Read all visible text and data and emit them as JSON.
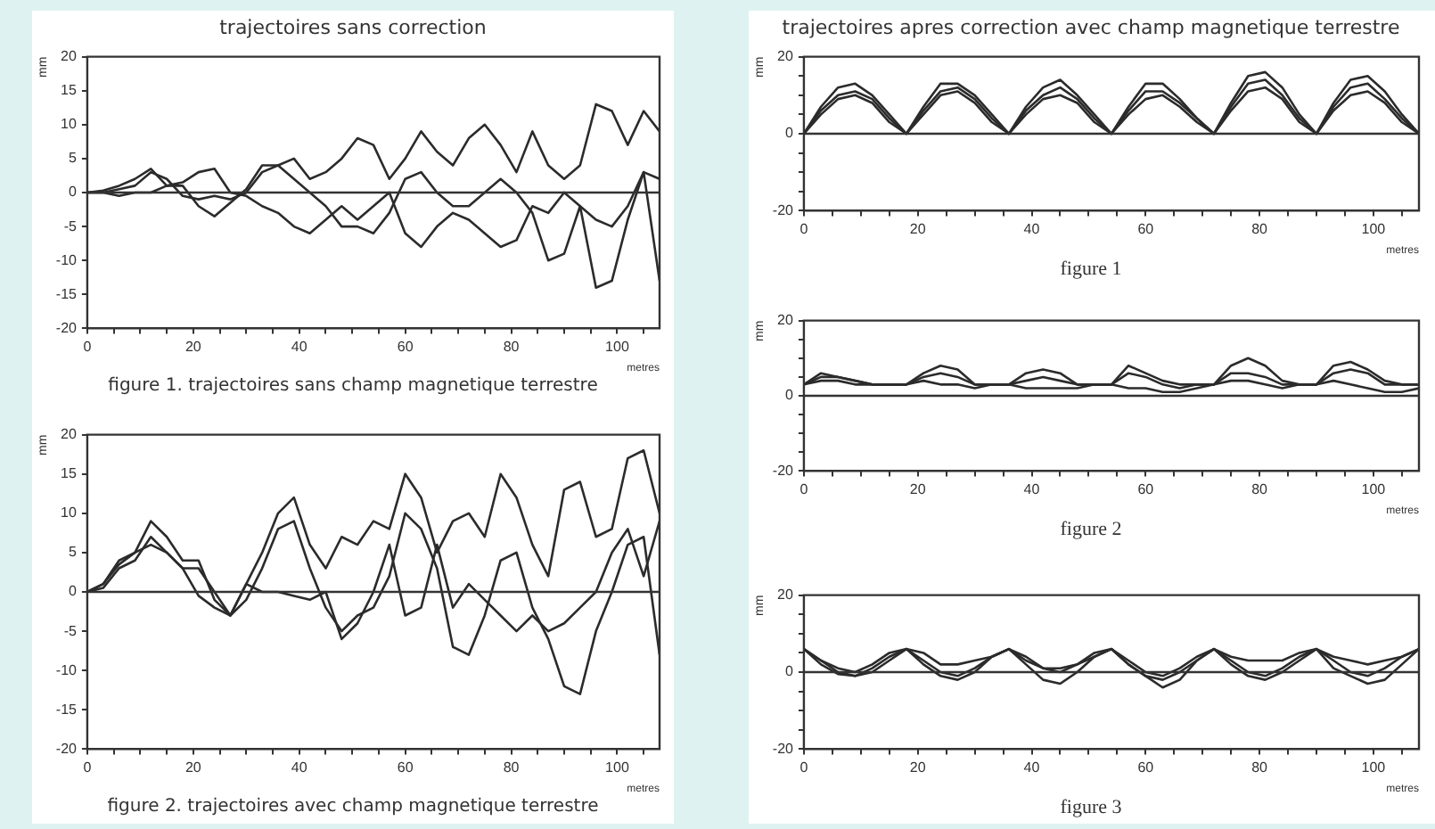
{
  "chart_data": [
    {
      "type": "line",
      "title": "trajectoires sans correction",
      "xlabel": "metres",
      "ylabel": "mm",
      "annotations": [
        "figure 1. trajectoires sans champ magnetique terrestre"
      ],
      "x": [
        0,
        3,
        6,
        9,
        12,
        15,
        18,
        21,
        24,
        27,
        30,
        33,
        36,
        39,
        42,
        45,
        48,
        51,
        54,
        57,
        60,
        63,
        66,
        69,
        72,
        75,
        78,
        81,
        84,
        87,
        90,
        93,
        96,
        99,
        102,
        105,
        108
      ],
      "series": [
        {
          "color": "#2b2b2b",
          "values": [
            0,
            0,
            0.5,
            1,
            3,
            2,
            -0.5,
            -1,
            -0.5,
            -1,
            0,
            3,
            4,
            5,
            2,
            3,
            5,
            8,
            7,
            2,
            5,
            9,
            6,
            4,
            8,
            10,
            7,
            3,
            9,
            4,
            2,
            4,
            13,
            12,
            7,
            12,
            9
          ]
        },
        {
          "color": "#2b2b2b",
          "values": [
            0,
            0.3,
            1,
            2,
            3.5,
            1,
            1.5,
            3,
            3.5,
            0,
            -0.5,
            -2,
            -3,
            -5,
            -6,
            -4,
            -2,
            -4,
            -2,
            0,
            -6,
            -8,
            -5,
            -3,
            -4,
            -6,
            -8,
            -7,
            -2,
            -3,
            0,
            -2,
            -4,
            -5,
            -2,
            3,
            2
          ]
        },
        {
          "color": "#2b2b2b",
          "values": [
            0,
            0,
            -0.5,
            0,
            0,
            1,
            1,
            -2,
            -3.5,
            -1.5,
            0.5,
            4,
            4,
            2,
            0,
            -2,
            -5,
            -5,
            -6,
            -3,
            2,
            3,
            0,
            -2,
            -2,
            0,
            2,
            0,
            -3,
            -10,
            -9,
            -2,
            -14,
            -13,
            -4,
            3,
            -13
          ]
        }
      ],
      "xlim": [
        0,
        108
      ],
      "ylim": [
        -20,
        20
      ],
      "xticks": [
        0,
        {
          "value": 5,
          "label": null
        },
        {
          "value": 10,
          "label": null
        },
        {
          "value": 15,
          "label": null
        },
        20,
        {
          "value": 25,
          "label": null
        },
        {
          "value": 30,
          "label": null
        },
        {
          "value": 35,
          "label": null
        },
        40,
        {
          "value": 45,
          "label": null
        },
        {
          "value": 50,
          "label": null
        },
        {
          "value": 55,
          "label": null
        },
        60,
        {
          "value": 65,
          "label": null
        },
        {
          "value": 70,
          "label": null
        },
        {
          "value": 75,
          "label": null
        },
        80,
        {
          "value": 85,
          "label": null
        },
        {
          "value": 90,
          "label": null
        },
        {
          "value": 95,
          "label": null
        },
        100,
        {
          "value": 105,
          "label": null
        }
      ],
      "yticks": [
        -20,
        -15,
        -10,
        -5,
        0,
        5,
        10,
        15,
        20
      ],
      "ref_lines": [
        {
          "axis": "y",
          "value": 0
        }
      ],
      "grid": false,
      "legend": false,
      "marker": "none",
      "line_style": "solid"
    },
    {
      "type": "line",
      "xlabel": "metres",
      "ylabel": "mm",
      "annotations": [
        "figure 2. trajectoires avec champ magnetique terrestre"
      ],
      "x": [
        0,
        3,
        6,
        9,
        12,
        15,
        18,
        21,
        24,
        27,
        30,
        33,
        36,
        39,
        42,
        45,
        48,
        51,
        54,
        57,
        60,
        63,
        66,
        69,
        72,
        75,
        78,
        81,
        84,
        87,
        90,
        93,
        96,
        99,
        102,
        105,
        108
      ],
      "series": [
        {
          "color": "#2b2b2b",
          "values": [
            0,
            1,
            4,
            5,
            9,
            7,
            4,
            4,
            -1,
            -3,
            1,
            5,
            10,
            12,
            6,
            3,
            7,
            6,
            9,
            8,
            15,
            12,
            5,
            9,
            10,
            7,
            15,
            12,
            6,
            2,
            13,
            14,
            7,
            8,
            17,
            18,
            10
          ]
        },
        {
          "color": "#2b2b2b",
          "values": [
            0,
            1,
            3.5,
            5,
            6,
            5,
            3,
            3,
            0,
            -3,
            -1,
            3,
            8,
            9,
            3,
            -2,
            -5,
            -3,
            -2,
            2,
            10,
            8,
            3,
            -7,
            -8,
            -3,
            4,
            5,
            -2,
            -6,
            -12,
            -13,
            -5,
            0,
            6,
            7,
            -8
          ]
        },
        {
          "color": "#2b2b2b",
          "values": [
            0,
            0.5,
            3,
            4,
            7,
            5,
            3,
            -0.5,
            -2,
            -3,
            1,
            0,
            0,
            -0.5,
            -1,
            0,
            -6,
            -4,
            0,
            6,
            -3,
            -2,
            6,
            -2,
            1,
            -1,
            -3,
            -5,
            -3,
            -5,
            -4,
            -2,
            0,
            5,
            8,
            2,
            9
          ]
        }
      ],
      "xlim": [
        0,
        108
      ],
      "ylim": [
        -20,
        20
      ],
      "xticks": [
        0,
        {
          "value": 5,
          "label": null
        },
        {
          "value": 10,
          "label": null
        },
        {
          "value": 15,
          "label": null
        },
        20,
        {
          "value": 25,
          "label": null
        },
        {
          "value": 30,
          "label": null
        },
        {
          "value": 35,
          "label": null
        },
        40,
        {
          "value": 45,
          "label": null
        },
        {
          "value": 50,
          "label": null
        },
        {
          "value": 55,
          "label": null
        },
        60,
        {
          "value": 65,
          "label": null
        },
        {
          "value": 70,
          "label": null
        },
        {
          "value": 75,
          "label": null
        },
        80,
        {
          "value": 85,
          "label": null
        },
        {
          "value": 90,
          "label": null
        },
        {
          "value": 95,
          "label": null
        },
        100,
        {
          "value": 105,
          "label": null
        }
      ],
      "yticks": [
        -20,
        -15,
        -10,
        -5,
        0,
        5,
        10,
        15,
        20
      ],
      "ref_lines": [
        {
          "axis": "y",
          "value": 0
        }
      ],
      "grid": false,
      "legend": false,
      "marker": "none",
      "line_style": "solid"
    },
    {
      "type": "line",
      "title": "trajectoires apres correction avec champ magnetique terrestre",
      "xlabel": "metres",
      "ylabel": "mm",
      "annotations": [
        "figure 1"
      ],
      "x": [
        0,
        3,
        6,
        9,
        12,
        15,
        18,
        21,
        24,
        27,
        30,
        33,
        36,
        39,
        42,
        45,
        48,
        51,
        54,
        57,
        60,
        63,
        66,
        69,
        72,
        75,
        78,
        81,
        84,
        87,
        90,
        93,
        96,
        99,
        102,
        105,
        108
      ],
      "series": [
        {
          "color": "#2b2b2b",
          "values": [
            0,
            7,
            12,
            13,
            10,
            5,
            0,
            7,
            13,
            13,
            10,
            5,
            0,
            7,
            12,
            14,
            10,
            5,
            0,
            7,
            13,
            13,
            9,
            4,
            0,
            8,
            15,
            16,
            12,
            5,
            0,
            8,
            14,
            15,
            11,
            5,
            0
          ]
        },
        {
          "color": "#2b2b2b",
          "values": [
            0,
            6,
            10,
            11,
            9,
            4,
            0,
            6,
            11,
            12,
            9,
            4,
            0,
            6,
            10,
            12,
            9,
            4,
            0,
            6,
            11,
            11,
            8,
            4,
            0,
            7,
            13,
            14,
            10,
            4,
            0,
            7,
            12,
            13,
            9,
            4,
            0
          ]
        },
        {
          "color": "#2b2b2b",
          "values": [
            0,
            5,
            9,
            10,
            8,
            3,
            0,
            5,
            10,
            11,
            8,
            3,
            0,
            5,
            9,
            10,
            8,
            3,
            0,
            5,
            9,
            10,
            7,
            3,
            0,
            6,
            11,
            12,
            9,
            3,
            0,
            6,
            10,
            11,
            8,
            3,
            0
          ]
        }
      ],
      "xlim": [
        0,
        108
      ],
      "ylim": [
        -20,
        20
      ],
      "xticks": [
        0,
        {
          "value": 5,
          "label": null
        },
        {
          "value": 10,
          "label": null
        },
        {
          "value": 15,
          "label": null
        },
        20,
        {
          "value": 25,
          "label": null
        },
        {
          "value": 30,
          "label": null
        },
        {
          "value": 35,
          "label": null
        },
        40,
        {
          "value": 45,
          "label": null
        },
        {
          "value": 50,
          "label": null
        },
        {
          "value": 55,
          "label": null
        },
        60,
        {
          "value": 65,
          "label": null
        },
        {
          "value": 70,
          "label": null
        },
        {
          "value": 75,
          "label": null
        },
        80,
        {
          "value": 85,
          "label": null
        },
        {
          "value": 90,
          "label": null
        },
        {
          "value": 95,
          "label": null
        },
        100,
        {
          "value": 105,
          "label": null
        }
      ],
      "yticks": [
        -20,
        {
          "value": -15,
          "label": null
        },
        {
          "value": -10,
          "label": null
        },
        {
          "value": -5,
          "label": null
        },
        0,
        {
          "value": 5,
          "label": null
        },
        {
          "value": 10,
          "label": null
        },
        {
          "value": 15,
          "label": null
        },
        20
      ],
      "ref_lines": [
        {
          "axis": "y",
          "value": 0
        }
      ],
      "grid": false,
      "legend": false,
      "marker": "none",
      "line_style": "solid"
    },
    {
      "type": "line",
      "xlabel": "metres",
      "ylabel": "mm",
      "annotations": [
        "figure 2"
      ],
      "x": [
        0,
        3,
        6,
        9,
        12,
        15,
        18,
        21,
        24,
        27,
        30,
        33,
        36,
        39,
        42,
        45,
        48,
        51,
        54,
        57,
        60,
        63,
        66,
        69,
        72,
        75,
        78,
        81,
        84,
        87,
        90,
        93,
        96,
        99,
        102,
        105,
        108
      ],
      "series": [
        {
          "color": "#2b2b2b",
          "values": [
            3,
            6,
            5,
            4,
            3,
            3,
            3,
            6,
            8,
            7,
            3,
            3,
            3,
            6,
            7,
            6,
            3,
            3,
            3,
            8,
            6,
            4,
            3,
            3,
            3,
            8,
            10,
            8,
            4,
            3,
            3,
            8,
            9,
            7,
            4,
            3,
            3
          ]
        },
        {
          "color": "#2b2b2b",
          "values": [
            3,
            5,
            5,
            4,
            3,
            3,
            3,
            5,
            6,
            5,
            3,
            3,
            3,
            4,
            5,
            4,
            3,
            3,
            3,
            6,
            5,
            3,
            2,
            3,
            3,
            6,
            6,
            5,
            3,
            3,
            3,
            6,
            7,
            6,
            3,
            3,
            3
          ]
        },
        {
          "color": "#2b2b2b",
          "values": [
            3,
            4,
            4,
            3,
            3,
            3,
            3,
            4,
            3,
            3,
            2,
            3,
            3,
            2,
            2,
            2,
            2,
            3,
            3,
            2,
            2,
            1,
            1,
            2,
            3,
            4,
            4,
            3,
            2,
            3,
            3,
            4,
            3,
            2,
            1,
            1,
            2
          ]
        }
      ],
      "xlim": [
        0,
        108
      ],
      "ylim": [
        -20,
        20
      ],
      "xticks": [
        0,
        {
          "value": 5,
          "label": null
        },
        {
          "value": 10,
          "label": null
        },
        {
          "value": 15,
          "label": null
        },
        20,
        {
          "value": 25,
          "label": null
        },
        {
          "value": 30,
          "label": null
        },
        {
          "value": 35,
          "label": null
        },
        40,
        {
          "value": 45,
          "label": null
        },
        {
          "value": 50,
          "label": null
        },
        {
          "value": 55,
          "label": null
        },
        60,
        {
          "value": 65,
          "label": null
        },
        {
          "value": 70,
          "label": null
        },
        {
          "value": 75,
          "label": null
        },
        80,
        {
          "value": 85,
          "label": null
        },
        {
          "value": 90,
          "label": null
        },
        {
          "value": 95,
          "label": null
        },
        100,
        {
          "value": 105,
          "label": null
        }
      ],
      "yticks": [
        -20,
        {
          "value": -15,
          "label": null
        },
        {
          "value": -10,
          "label": null
        },
        {
          "value": -5,
          "label": null
        },
        0,
        {
          "value": 5,
          "label": null
        },
        {
          "value": 10,
          "label": null
        },
        {
          "value": 15,
          "label": null
        },
        20
      ],
      "ref_lines": [
        {
          "axis": "y",
          "value": 0
        }
      ],
      "grid": false,
      "legend": false,
      "marker": "none",
      "line_style": "solid"
    },
    {
      "type": "line",
      "xlabel": "metres",
      "ylabel": "mm",
      "annotations": [
        "figure 3"
      ],
      "x": [
        0,
        3,
        6,
        9,
        12,
        15,
        18,
        21,
        24,
        27,
        30,
        33,
        36,
        39,
        42,
        45,
        48,
        51,
        54,
        57,
        60,
        63,
        66,
        69,
        72,
        75,
        78,
        81,
        84,
        87,
        90,
        93,
        96,
        99,
        102,
        105,
        108
      ],
      "series": [
        {
          "color": "#2b2b2b",
          "values": [
            6,
            3,
            0,
            -1,
            1,
            4,
            6,
            3,
            0,
            -1,
            1,
            4,
            6,
            3,
            1,
            0,
            2,
            4,
            6,
            3,
            0,
            -1,
            1,
            4,
            6,
            3,
            0,
            -1,
            1,
            4,
            6,
            3,
            0,
            -1,
            1,
            4,
            6
          ]
        },
        {
          "color": "#2b2b2b",
          "values": [
            6,
            2,
            -0.5,
            -1,
            0,
            3,
            6,
            2,
            -1,
            -2,
            0,
            4,
            6,
            2,
            -2,
            -3,
            0,
            4,
            6,
            2,
            -1,
            -2,
            0,
            3,
            6,
            2,
            -1,
            -2,
            0,
            3,
            6,
            1,
            -1,
            -3,
            -2,
            2,
            6
          ]
        },
        {
          "color": "#2b2b2b",
          "values": [
            6,
            3,
            1,
            0,
            2,
            5,
            6,
            5,
            2,
            2,
            3,
            4,
            6,
            4,
            1,
            1,
            2,
            5,
            6,
            2,
            -1,
            -4,
            -2,
            3,
            6,
            4,
            3,
            3,
            3,
            5,
            6,
            4,
            3,
            2,
            3,
            4,
            6
          ]
        }
      ],
      "xlim": [
        0,
        108
      ],
      "ylim": [
        -20,
        20
      ],
      "xticks": [
        0,
        {
          "value": 5,
          "label": null
        },
        {
          "value": 10,
          "label": null
        },
        {
          "value": 15,
          "label": null
        },
        20,
        {
          "value": 25,
          "label": null
        },
        {
          "value": 30,
          "label": null
        },
        {
          "value": 35,
          "label": null
        },
        40,
        {
          "value": 45,
          "label": null
        },
        {
          "value": 50,
          "label": null
        },
        {
          "value": 55,
          "label": null
        },
        60,
        {
          "value": 65,
          "label": null
        },
        {
          "value": 70,
          "label": null
        },
        {
          "value": 75,
          "label": null
        },
        80,
        {
          "value": 85,
          "label": null
        },
        {
          "value": 90,
          "label": null
        },
        {
          "value": 95,
          "label": null
        },
        100,
        {
          "value": 105,
          "label": null
        }
      ],
      "yticks": [
        -20,
        {
          "value": -15,
          "label": null
        },
        {
          "value": -10,
          "label": null
        },
        {
          "value": -5,
          "label": null
        },
        0,
        {
          "value": 5,
          "label": null
        },
        {
          "value": 10,
          "label": null
        },
        {
          "value": 15,
          "label": null
        },
        20
      ],
      "ref_lines": [
        {
          "axis": "y",
          "value": 0
        }
      ],
      "grid": false,
      "legend": false,
      "marker": "none",
      "line_style": "solid"
    }
  ]
}
